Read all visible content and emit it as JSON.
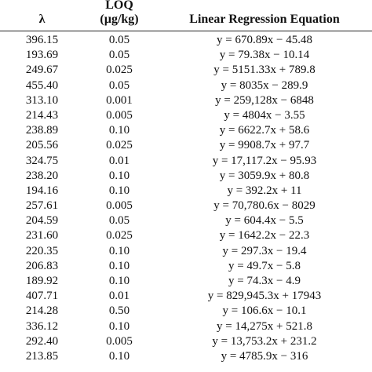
{
  "table": {
    "headers": {
      "lambda": "λ",
      "loq_line1": "LOQ",
      "loq_line2": "(µg/kg)",
      "equation": "Linear Regression Equation"
    },
    "rows": [
      {
        "lambda": "396.15",
        "loq": "0.05",
        "equation": "y = 670.89x − 45.48"
      },
      {
        "lambda": "193.69",
        "loq": "0.05",
        "equation": "y = 79.38x − 10.14"
      },
      {
        "lambda": "249.67",
        "loq": "0.025",
        "equation": "y = 5151.33x + 789.8"
      },
      {
        "lambda": "455.40",
        "loq": "0.05",
        "equation": "y = 8035x − 289.9"
      },
      {
        "lambda": "313.10",
        "loq": "0.001",
        "equation": "y = 259,128x − 6848"
      },
      {
        "lambda": "214.43",
        "loq": "0.005",
        "equation": "y = 4804x − 3.55"
      },
      {
        "lambda": "238.89",
        "loq": "0.10",
        "equation": "y = 6622.7x + 58.6"
      },
      {
        "lambda": "205.56",
        "loq": "0.025",
        "equation": "y = 9908.7x + 97.7"
      },
      {
        "lambda": "324.75",
        "loq": "0.01",
        "equation": "y = 17,117.2x − 95.93"
      },
      {
        "lambda": "238.20",
        "loq": "0.10",
        "equation": "y = 3059.9x + 80.8"
      },
      {
        "lambda": "194.16",
        "loq": "0.10",
        "equation": "y = 392.2x + 11"
      },
      {
        "lambda": "257.61",
        "loq": "0.005",
        "equation": "y = 70,780.6x − 8029"
      },
      {
        "lambda": "204.59",
        "loq": "0.05",
        "equation": "y = 604.4x − 5.5"
      },
      {
        "lambda": "231.60",
        "loq": "0.025",
        "equation": "y = 1642.2x − 22.3"
      },
      {
        "lambda": "220.35",
        "loq": "0.10",
        "equation": "y = 297.3x − 19.4"
      },
      {
        "lambda": "206.83",
        "loq": "0.10",
        "equation": "y = 49.7x − 5.8"
      },
      {
        "lambda": "189.92",
        "loq": "0.10",
        "equation": "y = 74.3x − 4.9"
      },
      {
        "lambda": "407.71",
        "loq": "0.01",
        "equation": "y = 829,945.3x + 17943"
      },
      {
        "lambda": "214.28",
        "loq": "0.50",
        "equation": "y = 106.6x − 10.1"
      },
      {
        "lambda": "336.12",
        "loq": "0.10",
        "equation": "y = 14,275x + 521.8"
      },
      {
        "lambda": "292.40",
        "loq": "0.005",
        "equation": "y = 13,753.2x + 231.2"
      },
      {
        "lambda": "213.85",
        "loq": "0.10",
        "equation": "y = 4785.9x − 316"
      }
    ]
  }
}
